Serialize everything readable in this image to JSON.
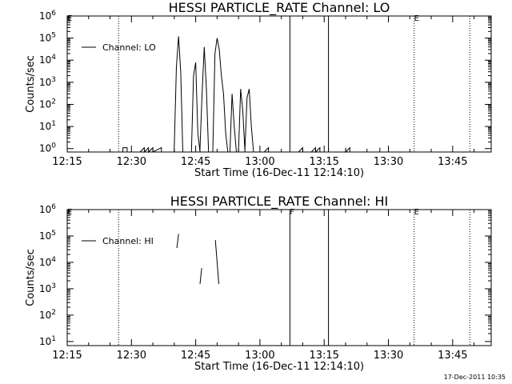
{
  "footer": {
    "timestamp": "17-Dec-2011 10:35"
  },
  "chart_data": [
    {
      "type": "line",
      "title": "HESSI PARTICLE_RATE Channel: LO",
      "xlabel": "Start Time (16-Dec-11 12:14:10)",
      "ylabel": "Counts/sec",
      "yscale": "log",
      "xlim": [
        "12:15",
        "13:54"
      ],
      "ylim": [
        0.7,
        1000000
      ],
      "x_ticks": [
        "12:15",
        "12:30",
        "12:45",
        "13:00",
        "13:15",
        "13:30",
        "13:45"
      ],
      "y_ticks": [
        "10^0",
        "10^1",
        "10^2",
        "10^3",
        "10^4",
        "10^5",
        "10^6"
      ],
      "legend": {
        "position": "top-left",
        "entries": [
          "Channel: LO"
        ]
      },
      "flags": [
        {
          "time": "12:15",
          "label": "E"
        },
        {
          "time": "13:36",
          "label": "E"
        }
      ],
      "dotted_vlines": [
        "12:27",
        "13:36",
        "13:49"
      ],
      "solid_vlines": [
        "13:07",
        "13:16"
      ],
      "series": [
        {
          "name": "Channel: LO",
          "points": [
            [
              "12:15",
              0.7
            ],
            [
              "12:28",
              0.7
            ],
            [
              "12:28",
              1.1
            ],
            [
              "12:29",
              1.1
            ],
            [
              "12:29",
              0.7
            ],
            [
              "12:32",
              0.7
            ],
            [
              "12:33",
              1.1
            ],
            [
              "12:33",
              0.7
            ],
            [
              "12:34",
              1.1
            ],
            [
              "12:34",
              0.7
            ],
            [
              "12:35",
              1.1
            ],
            [
              "12:35",
              0.7
            ],
            [
              "12:37",
              1.1
            ],
            [
              "12:37",
              0.7
            ],
            [
              "12:40",
              0.7
            ],
            [
              "12:40",
              1
            ],
            [
              "12:40.5",
              5000
            ],
            [
              "12:41",
              120000
            ],
            [
              "12:41.5",
              3000
            ],
            [
              "12:42",
              0.7
            ],
            [
              "12:44",
              0.7
            ],
            [
              "12:44.5",
              2000
            ],
            [
              "12:45",
              8000
            ],
            [
              "12:45.5",
              5
            ],
            [
              "12:46",
              0.7
            ],
            [
              "12:46",
              1
            ],
            [
              "12:46.5",
              300
            ],
            [
              "12:47",
              40000
            ],
            [
              "12:47.5",
              500
            ],
            [
              "12:48",
              0.7
            ],
            [
              "12:49",
              0.7
            ],
            [
              "12:49.5",
              20000
            ],
            [
              "12:50",
              100000
            ],
            [
              "12:50.5",
              30000
            ],
            [
              "12:51",
              2000
            ],
            [
              "12:51.5",
              300
            ],
            [
              "12:52",
              5
            ],
            [
              "12:52.5",
              0.7
            ],
            [
              "12:53",
              0.7
            ],
            [
              "12:53.5",
              300
            ],
            [
              "12:54",
              10
            ],
            [
              "12:54.5",
              0.7
            ],
            [
              "12:55",
              0.7
            ],
            [
              "12:55.5",
              500
            ],
            [
              "12:56",
              50
            ],
            [
              "12:56.5",
              0.7
            ],
            [
              "12:56.5",
              1
            ],
            [
              "12:57",
              200
            ],
            [
              "12:57.5",
              500
            ],
            [
              "12:58",
              10
            ],
            [
              "12:58.5",
              0.7
            ],
            [
              "13:01",
              0.7
            ],
            [
              "13:02",
              1.1
            ],
            [
              "13:02",
              0.7
            ],
            [
              "13:09",
              0.7
            ],
            [
              "13:10",
              1.1
            ],
            [
              "13:10",
              0.7
            ],
            [
              "13:12",
              0.7
            ],
            [
              "13:13",
              1.1
            ],
            [
              "13:13",
              0.7
            ],
            [
              "13:14",
              1.1
            ],
            [
              "13:14",
              0.7
            ],
            [
              "13:16",
              0.7
            ],
            [
              "13:16",
              1.1
            ],
            [
              "13:16",
              0.7
            ],
            [
              "13:20",
              0.7
            ],
            [
              "13:20",
              1.1
            ],
            [
              "13:20",
              0.7
            ],
            [
              "13:21",
              1.1
            ],
            [
              "13:21",
              0.7
            ],
            [
              "13:28",
              0.7
            ],
            [
              "13:28",
              1.1
            ],
            [
              "13:28",
              0.7
            ],
            [
              "13:54",
              0.7
            ]
          ]
        }
      ]
    },
    {
      "type": "line",
      "title": "HESSI PARTICLE_RATE Channel: HI",
      "xlabel": "Start Time (16-Dec-11 12:14:10)",
      "ylabel": "Counts/sec",
      "yscale": "log",
      "xlim": [
        "12:15",
        "13:54"
      ],
      "ylim": [
        7,
        1000000
      ],
      "x_ticks": [
        "12:15",
        "12:30",
        "12:45",
        "13:00",
        "13:15",
        "13:30",
        "13:45"
      ],
      "y_ticks": [
        "10^1",
        "10^2",
        "10^3",
        "10^4",
        "10^5",
        "10^6"
      ],
      "legend": {
        "position": "top-left",
        "entries": [
          "Channel: HI"
        ]
      },
      "flags": [
        {
          "time": "12:15",
          "label": "E"
        },
        {
          "time": "13:07",
          "label": "F"
        },
        {
          "time": "13:36",
          "label": "E"
        }
      ],
      "dotted_vlines": [
        "12:27",
        "13:36",
        "13:49"
      ],
      "solid_vlines": [
        "13:07",
        "13:16"
      ],
      "series": [
        {
          "name": "Channel: HI",
          "segments": [
            [
              [
                "12:40.6",
                35000
              ],
              [
                "12:41",
                120000
              ]
            ],
            [
              [
                "12:46",
                1500
              ],
              [
                "12:46.4",
                6000
              ]
            ],
            [
              [
                "12:49.6",
                70000
              ],
              [
                "12:50",
                10000
              ],
              [
                "12:50.4",
                1500
              ]
            ]
          ]
        }
      ]
    }
  ]
}
